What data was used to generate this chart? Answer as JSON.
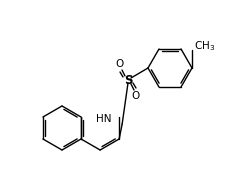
{
  "figsize": [
    2.35,
    1.78
  ],
  "dpi": 100,
  "bg": "#ffffff",
  "lc": "#000000",
  "lw": 1.0,
  "font_size": 7.5,
  "xlim": [
    0,
    235
  ],
  "ylim": [
    0,
    178
  ]
}
